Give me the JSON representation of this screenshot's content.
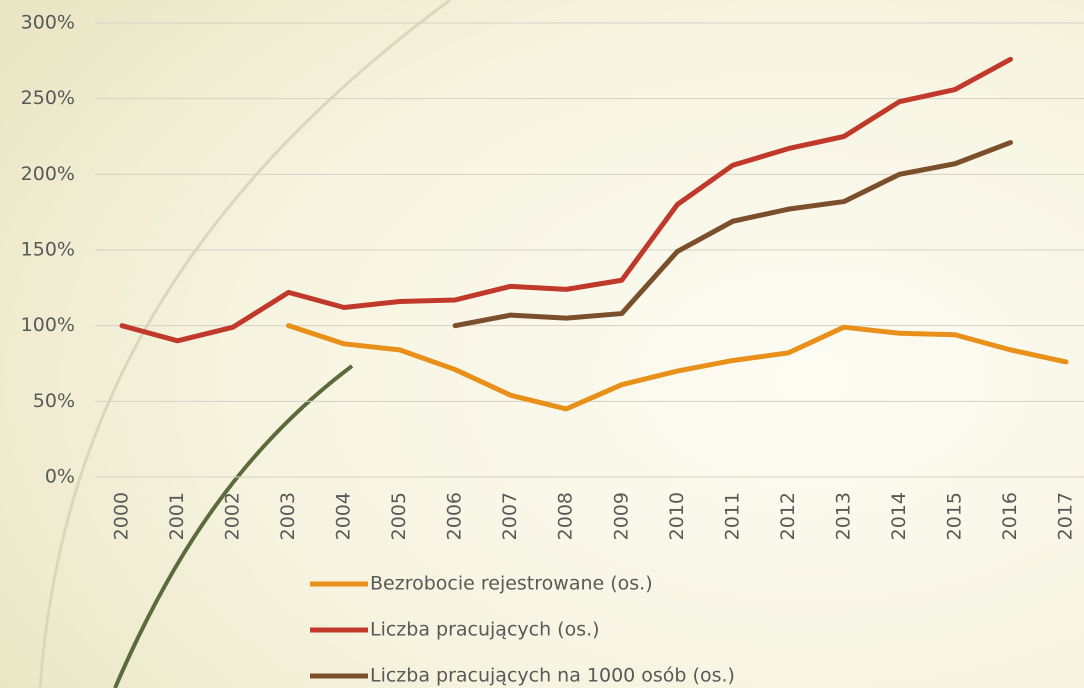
{
  "chart_data": {
    "type": "line",
    "categories": [
      "2000",
      "2001",
      "2002",
      "2003",
      "2004",
      "2005",
      "2006",
      "2007",
      "2008",
      "2009",
      "2010",
      "2011",
      "2012",
      "2013",
      "2014",
      "2015",
      "2016",
      "2017"
    ],
    "series": [
      {
        "name": "Bezrobocie rejestrowane (os.)",
        "color": "#e8901a",
        "values": [
          null,
          null,
          null,
          100,
          88,
          84,
          71,
          54,
          45,
          61,
          70,
          77,
          82,
          99,
          95,
          94,
          84,
          76
        ]
      },
      {
        "name": "Liczba pracujących (os.)",
        "color": "#c0392b",
        "values": [
          100,
          90,
          99,
          122,
          112,
          116,
          117,
          126,
          124,
          130,
          180,
          206,
          217,
          225,
          248,
          256,
          276,
          null
        ]
      },
      {
        "name": "Liczba pracujących na 1000 osób (os.)",
        "color": "#7b4f2c",
        "values": [
          null,
          null,
          null,
          null,
          null,
          null,
          100,
          107,
          105,
          108,
          149,
          169,
          177,
          182,
          200,
          207,
          221,
          null
        ]
      }
    ],
    "ylim": [
      0,
      300
    ],
    "yticks": [
      {
        "value": 0,
        "label": "0%"
      },
      {
        "value": 50,
        "label": "50%"
      },
      {
        "value": 100,
        "label": "100%"
      },
      {
        "value": 150,
        "label": "150%"
      },
      {
        "value": 200,
        "label": "200%"
      },
      {
        "value": 250,
        "label": "250%"
      },
      {
        "value": 300,
        "label": "300%"
      }
    ],
    "grid": true
  }
}
